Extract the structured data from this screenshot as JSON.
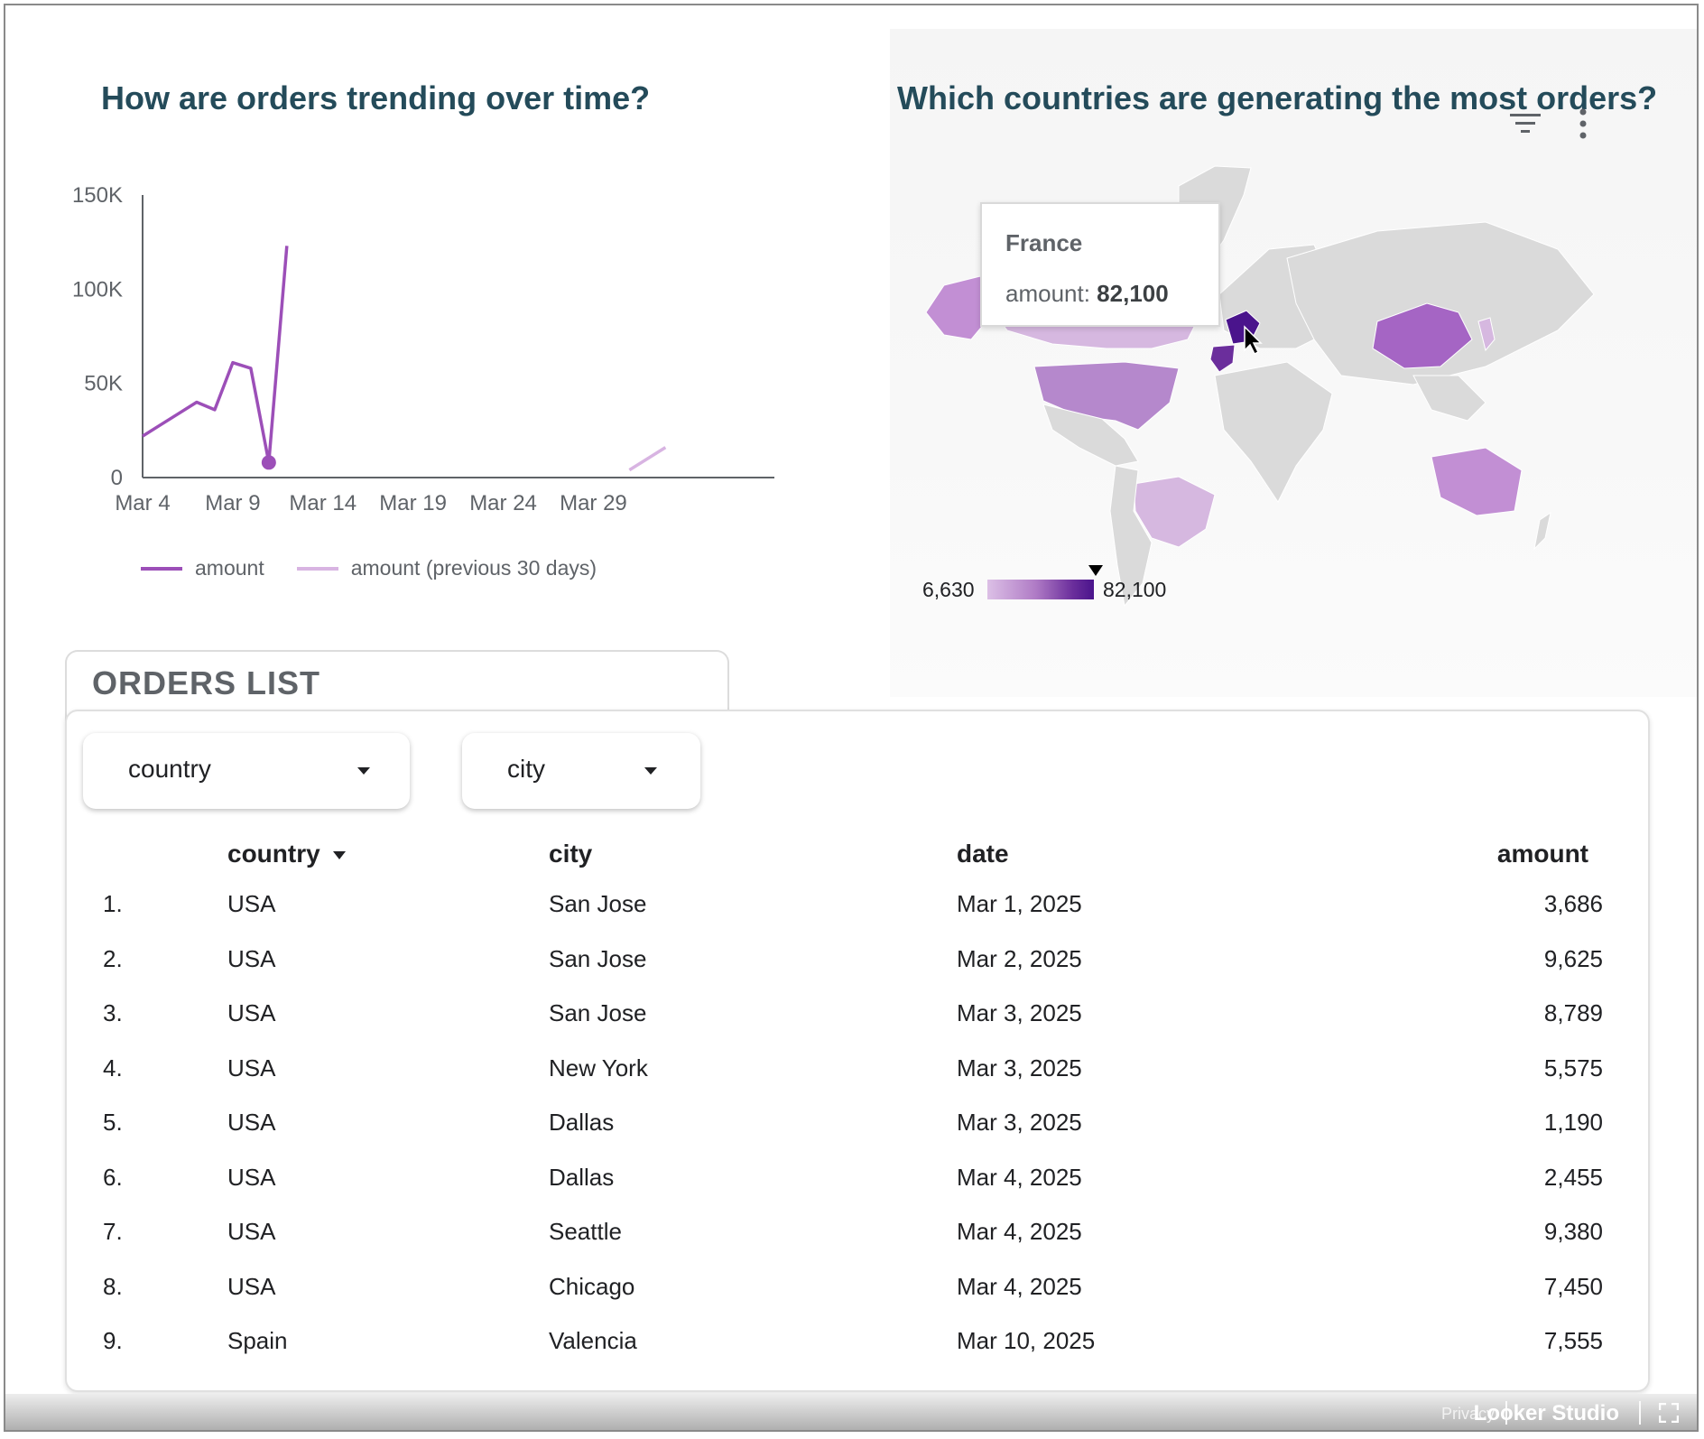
{
  "line_chart": {
    "title": "How are orders trending over time?",
    "y_ticks": [
      "150K",
      "100K",
      "50K",
      "0"
    ],
    "x_ticks": [
      "Mar 4",
      "Mar 9",
      "Mar 14",
      "Mar 19",
      "Mar 24",
      "Mar 29"
    ],
    "legend": [
      "amount",
      "amount (previous 30 days)"
    ],
    "colors": {
      "current": "#9c4fb8",
      "previous": "#d8b4e2",
      "axis": "#5f6368"
    }
  },
  "chart_data": {
    "type": "line",
    "x_label_ticks": [
      "Mar 4",
      "Mar 9",
      "Mar 14",
      "Mar 19",
      "Mar 24",
      "Mar 29"
    ],
    "ylim": [
      0,
      150000
    ],
    "grid": false,
    "legend_position": "bottom-left",
    "series": [
      {
        "name": "amount",
        "x": [
          "Mar 4",
          "Mar 5",
          "Mar 6",
          "Mar 7",
          "Mar 8",
          "Mar 9",
          "Mar 10",
          "Mar 11",
          "Mar 12"
        ],
        "values": [
          22000,
          28000,
          34000,
          40000,
          36000,
          61000,
          58000,
          8000,
          123000
        ]
      },
      {
        "name": "amount (previous 30 days)",
        "x": [
          "Mar 31",
          "Apr 2"
        ],
        "values": [
          4000,
          16000
        ]
      }
    ],
    "highlight_point": {
      "x": "Mar 11",
      "value": 8000
    }
  },
  "map": {
    "title": "Which countries are generating the most orders?",
    "tooltip": {
      "country": "France",
      "label": "amount: ",
      "value": "82,100"
    },
    "scale": {
      "min": "6,630",
      "max": "82,100"
    },
    "icons": [
      "filter-icon",
      "more-vert-icon"
    ]
  },
  "orders": {
    "tab_title": "ORDERS LIST",
    "filters": {
      "country": "country",
      "city": "city"
    },
    "headers": {
      "country": "country",
      "city": "city",
      "date": "date",
      "amount": "amount"
    },
    "rows": [
      {
        "idx": "1.",
        "country": "USA",
        "city": "San Jose",
        "date": "Mar 1, 2025",
        "amount": "3,686"
      },
      {
        "idx": "2.",
        "country": "USA",
        "city": "San Jose",
        "date": "Mar 2, 2025",
        "amount": "9,625"
      },
      {
        "idx": "3.",
        "country": "USA",
        "city": "San Jose",
        "date": "Mar 3, 2025",
        "amount": "8,789"
      },
      {
        "idx": "4.",
        "country": "USA",
        "city": "New York",
        "date": "Mar 3, 2025",
        "amount": "5,575"
      },
      {
        "idx": "5.",
        "country": "USA",
        "city": "Dallas",
        "date": "Mar 3, 2025",
        "amount": "1,190"
      },
      {
        "idx": "6.",
        "country": "USA",
        "city": "Dallas",
        "date": "Mar 4, 2025",
        "amount": "2,455"
      },
      {
        "idx": "7.",
        "country": "USA",
        "city": "Seattle",
        "date": "Mar 4, 2025",
        "amount": "9,380"
      },
      {
        "idx": "8.",
        "country": "USA",
        "city": "Chicago",
        "date": "Mar 4, 2025",
        "amount": "7,450"
      },
      {
        "idx": "9.",
        "country": "Spain",
        "city": "Valencia",
        "date": "Mar 10, 2025",
        "amount": "7,555"
      }
    ]
  },
  "footer": {
    "privacy": "Privacy",
    "brand": "Looker Studio"
  }
}
